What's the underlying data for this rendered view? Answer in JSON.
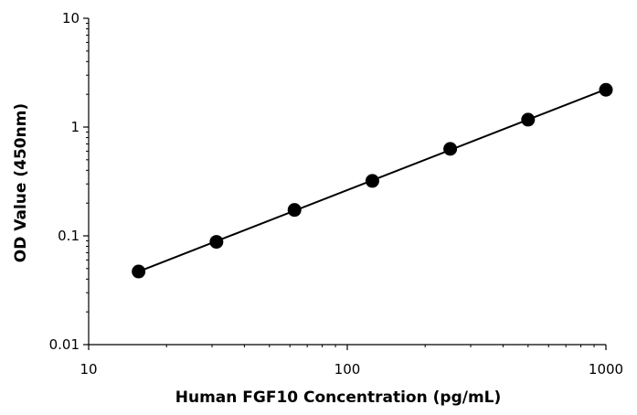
{
  "chart_data": {
    "type": "scatter",
    "title": "",
    "xlabel": "Human FGF10 Concentration (pg/mL)",
    "ylabel": "OD Value (450nm)",
    "xscale": "log",
    "yscale": "log",
    "xlim": [
      10,
      1000
    ],
    "ylim": [
      0.01,
      10
    ],
    "x_ticks": [
      "10",
      "100",
      "1000"
    ],
    "y_ticks": [
      "0.01",
      "0.1",
      "1",
      "10"
    ],
    "grid": false,
    "legend": "none",
    "series": [
      {
        "x": [
          15.6,
          31.2,
          62.5,
          125,
          250,
          500,
          1000
        ],
        "y": [
          0.047,
          0.088,
          0.173,
          0.32,
          0.63,
          1.17,
          2.2
        ],
        "trendline": true
      }
    ],
    "marker_color": "#000000",
    "line_color": "#000000"
  }
}
